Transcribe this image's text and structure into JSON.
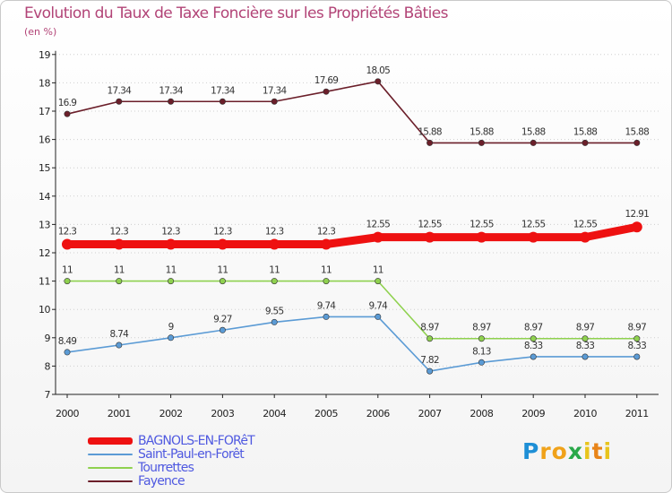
{
  "header": {
    "title": "Evolution du Taux de Taxe Foncière sur les Propriétés Bâties",
    "subtitle": "(en %)"
  },
  "chart_data": {
    "type": "line",
    "title": "Evolution du Taux de Taxe Foncière sur les Propriétés Bâties",
    "ylabel": "(en %)",
    "xlabel": "",
    "ylim": [
      7,
      19
    ],
    "yticks": [
      "7",
      "8",
      "9",
      "10",
      "11",
      "12",
      "13",
      "14",
      "15",
      "16",
      "17",
      "18",
      "19"
    ],
    "x": [
      "2000",
      "2001",
      "2002",
      "2003",
      "2004",
      "2005",
      "2006",
      "2007",
      "2008",
      "2009",
      "2010",
      "2011"
    ],
    "series": [
      {
        "name": "Fayence",
        "color": "#6b1f2a",
        "values": [
          16.9,
          17.34,
          17.34,
          17.34,
          17.34,
          17.69,
          18.05,
          15.88,
          15.88,
          15.88,
          15.88,
          15.88
        ],
        "labels": [
          "16.9",
          "17.34",
          "17.34",
          "17.34",
          "17.34",
          "17.69",
          "18.05",
          "15.88",
          "15.88",
          "15.88",
          "15.88",
          "15.88"
        ]
      },
      {
        "name": "Tourrettes",
        "color": "#8fd14f",
        "values": [
          11,
          11,
          11,
          11,
          11,
          11,
          11,
          8.97,
          8.97,
          8.97,
          8.97,
          8.97
        ],
        "labels": [
          "11",
          "11",
          "11",
          "11",
          "11",
          "11",
          "11",
          "8.97",
          "8.97",
          "8.97",
          "8.97",
          "8.97"
        ]
      },
      {
        "name": "Saint-Paul-en-Forêt",
        "color": "#5b9bd5",
        "values": [
          8.49,
          8.74,
          9,
          9.27,
          9.55,
          9.74,
          9.74,
          7.82,
          8.13,
          8.33,
          8.33,
          8.33
        ],
        "labels": [
          "8.49",
          "8.74",
          "9",
          "9.27",
          "9.55",
          "9.74",
          "9.74",
          "7.82",
          "8.13",
          "8.33",
          "8.33",
          "8.33"
        ]
      },
      {
        "name": "BAGNOLS-EN-FORêT",
        "color": "#ee1111",
        "values": [
          12.3,
          12.3,
          12.3,
          12.3,
          12.3,
          12.3,
          12.55,
          12.55,
          12.55,
          12.55,
          12.55,
          12.91
        ],
        "labels": [
          "12.3",
          "12.3",
          "12.3",
          "12.3",
          "12.3",
          "12.3",
          "12.55",
          "12.55",
          "12.55",
          "12.55",
          "12.55",
          "12.91"
        ]
      }
    ],
    "legend": {
      "placement": "bottom-left",
      "items": [
        "BAGNOLS-EN-FORêT",
        "Saint-Paul-en-Forêt",
        "Tourrettes",
        "Fayence"
      ]
    }
  },
  "logo": {
    "letters": [
      "P",
      "r",
      "o",
      "x",
      "i",
      "t",
      "i"
    ],
    "colors": [
      "#1e8fd6",
      "#f0a21a",
      "#f0a21a",
      "#2aa84a",
      "#e8c41c",
      "#e88419",
      "#e8c41c"
    ]
  }
}
